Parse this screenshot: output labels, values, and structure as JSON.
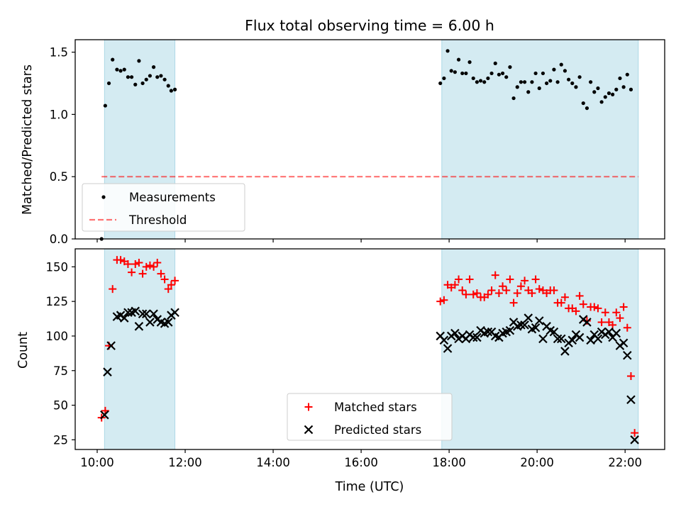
{
  "figure_title": "Flux total observing time = 6.00 h",
  "chart_data": [
    {
      "type": "scatter",
      "title": "",
      "xlabel": "",
      "ylabel": "Matched/Predicted stars",
      "xlim": [
        "09:30",
        "22:54"
      ],
      "ylim": [
        0.0,
        1.6
      ],
      "yticks": [
        "0.0",
        "0.5",
        "1.0",
        "1.5"
      ],
      "observing_windows": [
        [
          "10:10",
          "11:46"
        ],
        [
          "17:50",
          "22:18"
        ]
      ],
      "window_color": "#add8e6",
      "legend": {
        "placement": "lower-left",
        "entries": [
          "Measurements",
          "Threshold"
        ]
      },
      "threshold": {
        "name": "Threshold",
        "y": 0.5,
        "x_range": [
          "10:06",
          "22:18"
        ],
        "color": "#ff0000",
        "style": "dashed"
      },
      "series": [
        {
          "name": "Measurements",
          "marker": "dot",
          "color": "#000000",
          "points": [
            [
              "10:06",
              0.0
            ],
            [
              "10:11",
              1.07
            ],
            [
              "10:16",
              1.25
            ],
            [
              "10:21",
              1.44
            ],
            [
              "10:27",
              1.36
            ],
            [
              "10:32",
              1.35
            ],
            [
              "10:37",
              1.36
            ],
            [
              "10:42",
              1.3
            ],
            [
              "10:47",
              1.3
            ],
            [
              "10:52",
              1.24
            ],
            [
              "10:57",
              1.43
            ],
            [
              "11:02",
              1.25
            ],
            [
              "11:07",
              1.28
            ],
            [
              "11:12",
              1.31
            ],
            [
              "11:17",
              1.38
            ],
            [
              "11:22",
              1.3
            ],
            [
              "11:27",
              1.31
            ],
            [
              "11:32",
              1.28
            ],
            [
              "11:37",
              1.23
            ],
            [
              "11:41",
              1.19
            ],
            [
              "11:46",
              1.2
            ],
            [
              "17:48",
              1.25
            ],
            [
              "17:53",
              1.29
            ],
            [
              "17:58",
              1.51
            ],
            [
              "18:03",
              1.35
            ],
            [
              "18:08",
              1.34
            ],
            [
              "18:13",
              1.44
            ],
            [
              "18:18",
              1.33
            ],
            [
              "18:23",
              1.33
            ],
            [
              "18:28",
              1.42
            ],
            [
              "18:33",
              1.29
            ],
            [
              "18:38",
              1.26
            ],
            [
              "18:43",
              1.27
            ],
            [
              "18:48",
              1.26
            ],
            [
              "18:53",
              1.29
            ],
            [
              "18:58",
              1.33
            ],
            [
              "19:03",
              1.41
            ],
            [
              "19:08",
              1.32
            ],
            [
              "19:13",
              1.33
            ],
            [
              "19:18",
              1.3
            ],
            [
              "19:23",
              1.38
            ],
            [
              "19:28",
              1.13
            ],
            [
              "19:33",
              1.22
            ],
            [
              "19:38",
              1.26
            ],
            [
              "19:43",
              1.26
            ],
            [
              "19:48",
              1.18
            ],
            [
              "19:53",
              1.26
            ],
            [
              "19:58",
              1.33
            ],
            [
              "20:03",
              1.21
            ],
            [
              "20:08",
              1.33
            ],
            [
              "20:13",
              1.25
            ],
            [
              "20:18",
              1.27
            ],
            [
              "20:23",
              1.36
            ],
            [
              "20:28",
              1.26
            ],
            [
              "20:33",
              1.4
            ],
            [
              "20:38",
              1.35
            ],
            [
              "20:43",
              1.28
            ],
            [
              "20:48",
              1.25
            ],
            [
              "20:53",
              1.22
            ],
            [
              "20:58",
              1.3
            ],
            [
              "21:03",
              1.09
            ],
            [
              "21:08",
              1.05
            ],
            [
              "21:13",
              1.26
            ],
            [
              "21:18",
              1.18
            ],
            [
              "21:23",
              1.21
            ],
            [
              "21:28",
              1.1
            ],
            [
              "21:33",
              1.14
            ],
            [
              "21:38",
              1.17
            ],
            [
              "21:43",
              1.16
            ],
            [
              "21:48",
              1.2
            ],
            [
              "21:53",
              1.29
            ],
            [
              "21:58",
              1.22
            ],
            [
              "22:03",
              1.32
            ],
            [
              "22:08",
              1.2
            ]
          ]
        }
      ]
    },
    {
      "type": "scatter",
      "title": "",
      "xlabel": "Time (UTC)",
      "ylabel": "Count",
      "xlim": [
        "09:30",
        "22:54"
      ],
      "ylim": [
        18,
        163
      ],
      "xticks": [
        "10:00",
        "12:00",
        "14:00",
        "16:00",
        "18:00",
        "20:00",
        "22:00"
      ],
      "yticks": [
        "25",
        "50",
        "75",
        "100",
        "125",
        "150"
      ],
      "observing_windows": [
        [
          "10:10",
          "11:46"
        ],
        [
          "17:50",
          "22:18"
        ]
      ],
      "window_color": "#add8e6",
      "legend": {
        "placement": "lower-center",
        "entries": [
          "Matched stars",
          "Predicted stars"
        ]
      },
      "series": [
        {
          "name": "Matched stars",
          "marker": "plus",
          "color": "#ff0000",
          "points": [
            [
              "10:06",
              41
            ],
            [
              "10:11",
              46
            ],
            [
              "10:16",
              93
            ],
            [
              "10:21",
              134
            ],
            [
              "10:27",
              155
            ],
            [
              "10:32",
              155
            ],
            [
              "10:37",
              154
            ],
            [
              "10:42",
              152
            ],
            [
              "10:47",
              146
            ],
            [
              "10:52",
              152
            ],
            [
              "10:57",
              153
            ],
            [
              "11:02",
              145
            ],
            [
              "11:07",
              150
            ],
            [
              "11:12",
              151
            ],
            [
              "11:17",
              150
            ],
            [
              "11:22",
              153
            ],
            [
              "11:27",
              145
            ],
            [
              "11:32",
              141
            ],
            [
              "11:37",
              134
            ],
            [
              "11:41",
              137
            ],
            [
              "11:46",
              140
            ],
            [
              "17:48",
              125
            ],
            [
              "17:53",
              126
            ],
            [
              "17:58",
              137
            ],
            [
              "18:03",
              135
            ],
            [
              "18:08",
              137
            ],
            [
              "18:13",
              141
            ],
            [
              "18:18",
              133
            ],
            [
              "18:23",
              130
            ],
            [
              "18:28",
              141
            ],
            [
              "18:33",
              130
            ],
            [
              "18:38",
              131
            ],
            [
              "18:43",
              128
            ],
            [
              "18:48",
              128
            ],
            [
              "18:53",
              130
            ],
            [
              "18:58",
              133
            ],
            [
              "19:03",
              144
            ],
            [
              "19:08",
              131
            ],
            [
              "19:13",
              136
            ],
            [
              "19:18",
              133
            ],
            [
              "19:23",
              141
            ],
            [
              "19:28",
              124
            ],
            [
              "19:33",
              131
            ],
            [
              "19:38",
              136
            ],
            [
              "19:43",
              140
            ],
            [
              "19:48",
              133
            ],
            [
              "19:53",
              131
            ],
            [
              "19:58",
              141
            ],
            [
              "20:03",
              134
            ],
            [
              "20:08",
              133
            ],
            [
              "20:13",
              131
            ],
            [
              "20:18",
              133
            ],
            [
              "20:23",
              133
            ],
            [
              "20:28",
              124
            ],
            [
              "20:33",
              124
            ],
            [
              "20:38",
              128
            ],
            [
              "20:43",
              120
            ],
            [
              "20:48",
              120
            ],
            [
              "20:53",
              118
            ],
            [
              "20:58",
              129
            ],
            [
              "21:03",
              123
            ],
            [
              "21:08",
              111
            ],
            [
              "21:13",
              121
            ],
            [
              "21:18",
              121
            ],
            [
              "21:23",
              120
            ],
            [
              "21:28",
              110
            ],
            [
              "21:33",
              117
            ],
            [
              "21:38",
              110
            ],
            [
              "21:43",
              108
            ],
            [
              "21:48",
              117
            ],
            [
              "21:53",
              113
            ],
            [
              "21:58",
              121
            ],
            [
              "22:03",
              106
            ],
            [
              "22:08",
              71
            ],
            [
              "22:13",
              30
            ]
          ]
        },
        {
          "name": "Predicted stars",
          "marker": "x",
          "color": "#000000",
          "points": [
            [
              "10:10",
              43
            ],
            [
              "10:14",
              74
            ],
            [
              "10:19",
              93
            ],
            [
              "10:27",
              114
            ],
            [
              "10:32",
              115
            ],
            [
              "10:37",
              113
            ],
            [
              "10:42",
              117
            ],
            [
              "10:47",
              117
            ],
            [
              "10:52",
              118
            ],
            [
              "10:57",
              107
            ],
            [
              "11:02",
              116
            ],
            [
              "11:07",
              116
            ],
            [
              "11:12",
              110
            ],
            [
              "11:17",
              116
            ],
            [
              "11:22",
              112
            ],
            [
              "11:27",
              110
            ],
            [
              "11:32",
              109
            ],
            [
              "11:37",
              110
            ],
            [
              "11:41",
              115
            ],
            [
              "11:46",
              117
            ],
            [
              "17:48",
              100
            ],
            [
              "17:53",
              97
            ],
            [
              "17:58",
              91
            ],
            [
              "18:03",
              100
            ],
            [
              "18:08",
              102
            ],
            [
              "18:13",
              98
            ],
            [
              "18:18",
              100
            ],
            [
              "18:23",
              98
            ],
            [
              "18:28",
              101
            ],
            [
              "18:33",
              99
            ],
            [
              "18:38",
              99
            ],
            [
              "18:43",
              104
            ],
            [
              "18:48",
              102
            ],
            [
              "18:53",
              103
            ],
            [
              "18:58",
              103
            ],
            [
              "19:03",
              100
            ],
            [
              "19:08",
              99
            ],
            [
              "19:13",
              102
            ],
            [
              "19:18",
              103
            ],
            [
              "19:23",
              104
            ],
            [
              "19:28",
              110
            ],
            [
              "19:33",
              107
            ],
            [
              "19:38",
              108
            ],
            [
              "19:43",
              108
            ],
            [
              "19:48",
              113
            ],
            [
              "19:53",
              105
            ],
            [
              "19:58",
              106
            ],
            [
              "20:03",
              111
            ],
            [
              "20:08",
              98
            ],
            [
              "20:13",
              107
            ],
            [
              "20:18",
              104
            ],
            [
              "20:23",
              103
            ],
            [
              "20:28",
              98
            ],
            [
              "20:33",
              98
            ],
            [
              "20:38",
              89
            ],
            [
              "20:43",
              95
            ],
            [
              "20:48",
              97
            ],
            [
              "20:53",
              101
            ],
            [
              "20:58",
              99
            ],
            [
              "21:03",
              112
            ],
            [
              "21:08",
              110
            ],
            [
              "21:13",
              97
            ],
            [
              "21:18",
              101
            ],
            [
              "21:23",
              98
            ],
            [
              "21:28",
              103
            ],
            [
              "21:33",
              101
            ],
            [
              "21:38",
              103
            ],
            [
              "21:43",
              99
            ],
            [
              "21:48",
              102
            ],
            [
              "21:53",
              93
            ],
            [
              "21:58",
              95
            ],
            [
              "22:03",
              86
            ],
            [
              "22:08",
              54
            ],
            [
              "22:13",
              25
            ]
          ]
        }
      ]
    }
  ]
}
